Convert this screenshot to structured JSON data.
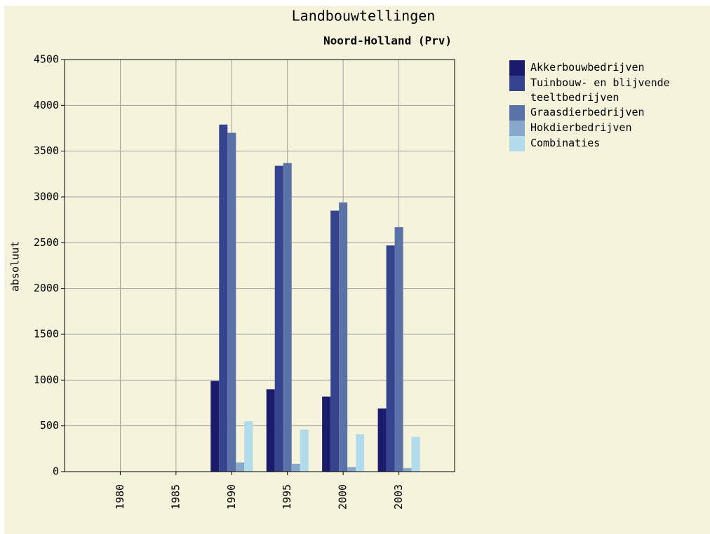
{
  "chart_data": {
    "type": "bar",
    "title": "Landbouwtellingen",
    "subtitle": "Noord-Holland (Prv)",
    "ylabel": "absoluut",
    "categories": [
      "1980",
      "1985",
      "1990",
      "1995",
      "2000",
      "2003"
    ],
    "series": [
      {
        "name": "Akkerbouwbedrijven",
        "color": "#1b1b6b",
        "values": [
          null,
          null,
          990,
          900,
          820,
          690
        ]
      },
      {
        "name": "Tuinbouw- en blijvende teeltbedrijven",
        "color": "#35438f",
        "values": [
          null,
          null,
          3790,
          3340,
          2850,
          2470
        ]
      },
      {
        "name": "Graasdierbedrijven",
        "color": "#5a72a8",
        "values": [
          null,
          null,
          3700,
          3370,
          2940,
          2670
        ]
      },
      {
        "name": "Hokdierbedrijven",
        "color": "#8aa8cc",
        "values": [
          null,
          null,
          100,
          85,
          50,
          40
        ]
      },
      {
        "name": "Combinaties",
        "color": "#b2dcec",
        "values": [
          null,
          null,
          550,
          460,
          410,
          380
        ]
      }
    ],
    "ylim": [
      0,
      4500
    ],
    "yticks": [
      0,
      500,
      1000,
      1500,
      2000,
      2500,
      3000,
      3500,
      4000,
      4500
    ],
    "grid": true
  }
}
